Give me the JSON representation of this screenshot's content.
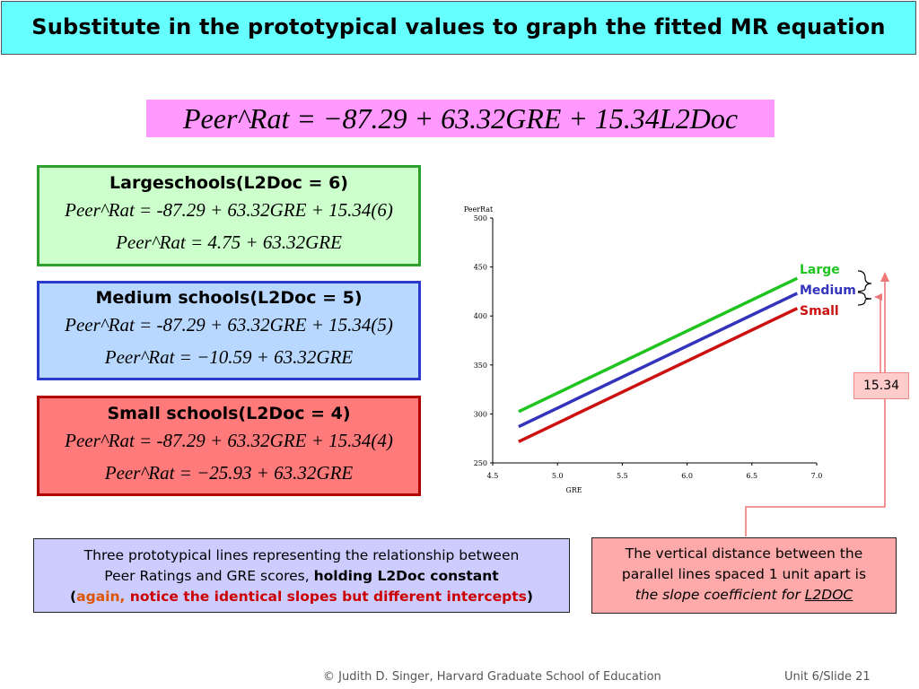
{
  "title": "Substitute in the prototypical values to graph the fitted MR equation",
  "main_equation": "Peer^Rat = −87.29 + 63.32GRE + 15.34L2Doc",
  "boxes": {
    "large": {
      "header": "Largeschools(L2Doc = 6)",
      "eq1": "Peer^Rat = -87.29 + 63.32GRE + 15.34(6)",
      "eq2": "Peer^Rat = 4.75 + 63.32GRE"
    },
    "medium": {
      "header": "Medium schools(L2Doc = 5)",
      "eq1": "Peer^Rat = -87.29 + 63.32GRE + 15.34(5)",
      "eq2": "Peer^Rat = −10.59 + 63.32GRE"
    },
    "small": {
      "header": "Small schools(L2Doc = 4)",
      "eq1": "Peer^Rat = -87.29 + 63.32GRE + 15.34(4)",
      "eq2": "Peer^Rat = −25.93 + 63.32GRE"
    }
  },
  "note_left": {
    "line1": "Three prototypical lines representing the relationship between",
    "line2a": "Peer Ratings and GRE scores, ",
    "line2b": "holding L2Doc constant",
    "open": "(",
    "again": "again,",
    "rest": " notice the identical slopes but different intercepts",
    "close": ")"
  },
  "note_right": {
    "line1": "The vertical distance between the",
    "line2": "parallel lines spaced 1 unit apart is",
    "line3a": "the slope coefficient for ",
    "line3b": "L2DOC"
  },
  "badge": "15.34",
  "footer": {
    "left": "© Judith D. Singer, Harvard Graduate School of Education",
    "right": "Unit 6/Slide 21"
  },
  "colors": {
    "large": "#1fc41f",
    "medium": "#3333bb",
    "small": "#cc1111",
    "bracket": "#ee7777"
  },
  "chart_data": {
    "type": "line",
    "ylabel": "PeerRat",
    "xlabel": "GRE",
    "xlim": [
      4.5,
      7.0
    ],
    "ylim": [
      250,
      500
    ],
    "xticks": [
      4.5,
      5.0,
      5.5,
      6.0,
      6.5,
      7.0
    ],
    "xtick_labels": [
      "4.5",
      "5.0",
      "5.5",
      "6.0",
      "6.5",
      "7.0"
    ],
    "yticks": [
      250,
      300,
      350,
      400,
      450,
      500
    ],
    "ytick_labels": [
      "250",
      "300",
      "350",
      "400",
      "450",
      "500"
    ],
    "grid": false,
    "legend": "right",
    "series": [
      {
        "name": "Large",
        "color": "#1fc41f",
        "x": [
          4.7,
          6.85
        ],
        "y": [
          302.35,
          438.49
        ]
      },
      {
        "name": "Medium",
        "color": "#3333bb",
        "x": [
          4.7,
          6.85
        ],
        "y": [
          287.01,
          423.15
        ]
      },
      {
        "name": "Small",
        "color": "#cc1111",
        "x": [
          4.7,
          6.85
        ],
        "y": [
          271.67,
          407.81
        ]
      }
    ]
  }
}
